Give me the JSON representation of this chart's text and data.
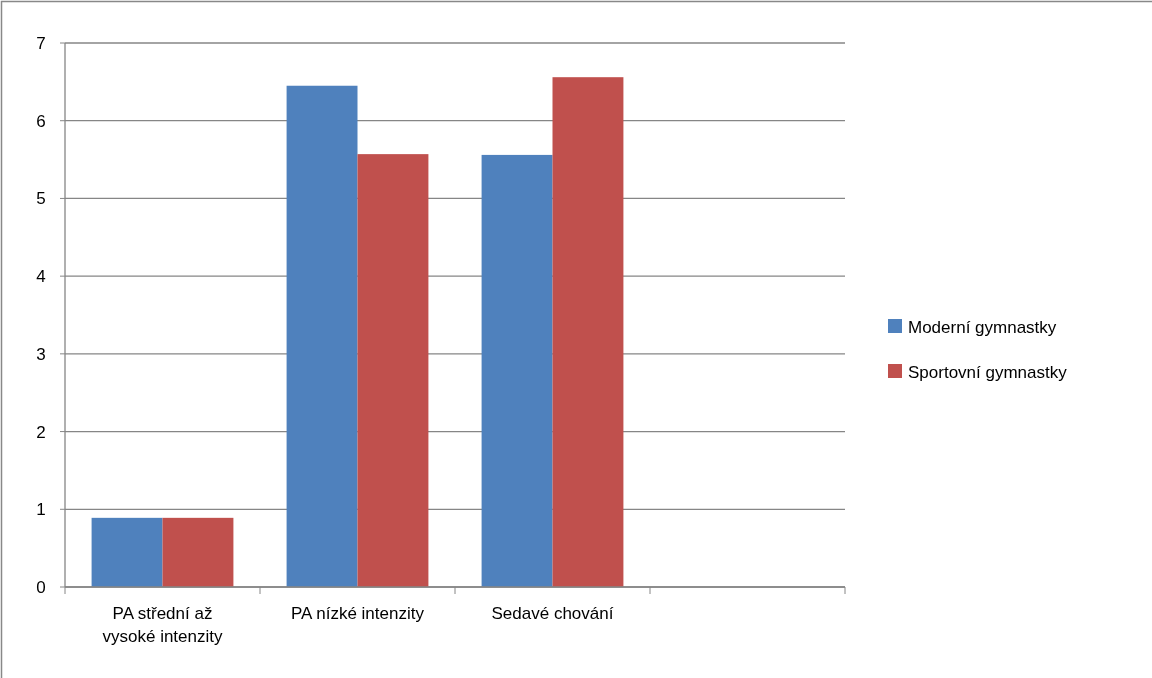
{
  "chart_data": {
    "type": "bar",
    "categories": [
      "PA střední až vysoké intenzity",
      "PA nízké intenzity",
      "Sedavé chování",
      null
    ],
    "series": [
      {
        "name": "Moderní gymnastky",
        "color": "#4f81bd",
        "values": [
          0.89,
          6.45,
          5.56,
          null
        ]
      },
      {
        "name": "Sportovní gymnastky",
        "color": "#c0504d",
        "values": [
          0.89,
          5.57,
          6.56,
          null
        ]
      }
    ],
    "ylim": [
      0,
      7
    ],
    "yticks": [
      0,
      1,
      2,
      3,
      4,
      5,
      6,
      7
    ],
    "grid": "y",
    "legend": "right"
  }
}
